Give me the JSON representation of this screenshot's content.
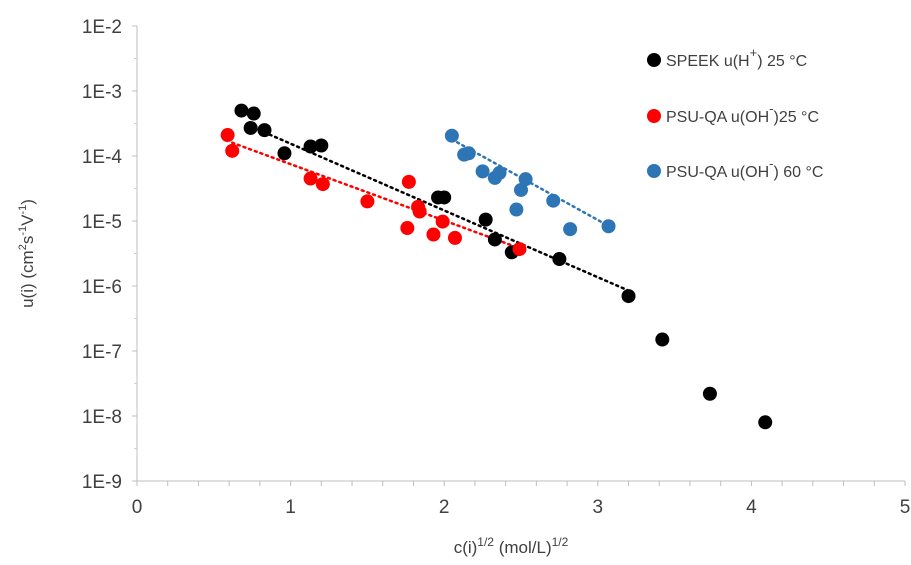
{
  "chart_data": {
    "type": "scatter",
    "xlabel_base": "c(i)",
    "xlabel_exp": "1/2",
    "xlabel_unit": " (mol/L)",
    "xlabel_unit_exp": "1/2",
    "ylabel_base": "u(i) (cm",
    "ylabel_sup1": "2",
    "ylabel_mid": "s",
    "ylabel_sup2": "-1",
    "ylabel_mid2": "V",
    "ylabel_sup3": "-1",
    "ylabel_end": ")",
    "xlim": [
      0,
      5
    ],
    "ylim_log10": [
      -9,
      -2
    ],
    "y_scale": "log",
    "grid": false,
    "legend_position": "top-right",
    "x_ticks": [
      "0",
      "1",
      "2",
      "3",
      "4",
      "5"
    ],
    "y_ticks": [
      "1E-9",
      "1E-8",
      "1E-7",
      "1E-6",
      "1E-5",
      "1E-4",
      "1E-3",
      "1E-2"
    ],
    "series": [
      {
        "legend_prefix": "SPEEK ",
        "legend_ion": "u(H",
        "legend_sign": "+",
        "legend_suffix": ") 25 °C",
        "color": "#000000",
        "x": [
          0.68,
          0.76,
          0.74,
          0.83,
          0.96,
          1.13,
          1.2,
          1.96,
          2.0,
          2.27,
          2.33,
          2.44,
          2.75,
          3.2,
          3.42,
          3.73,
          4.09
        ],
        "y": [
          0.0005,
          0.00045,
          0.00027,
          0.00025,
          0.00011,
          0.00014,
          0.000145,
          2.3e-05,
          2.3e-05,
          1.05e-05,
          5.2e-06,
          3.3e-06,
          2.6e-06,
          7e-07,
          1.5e-07,
          2.2e-08,
          8e-09
        ],
        "trend": {
          "x": [
            0.72,
            3.2
          ],
          "y": [
            0.0003,
            8.5e-07
          ]
        }
      },
      {
        "legend_prefix": "PSU-QA ",
        "legend_ion": "u(OH",
        "legend_sign": "-",
        "legend_suffix": ")25 °C",
        "color": "#ff0000",
        "x": [
          0.59,
          0.62,
          1.13,
          1.21,
          1.5,
          1.77,
          1.76,
          1.83,
          1.84,
          1.93,
          1.99,
          2.07,
          2.49
        ],
        "y": [
          0.00021,
          0.00012,
          4.5e-05,
          3.7e-05,
          2e-05,
          4e-05,
          7.8e-06,
          1.65e-05,
          1.4e-05,
          6.2e-06,
          9.8e-06,
          5.5e-06,
          3.7e-06
        ],
        "trend": {
          "x": [
            0.62,
            2.48
          ],
          "y": [
            0.00016,
            3.9e-06
          ]
        }
      },
      {
        "legend_prefix": "PSU-QA ",
        "legend_ion": "u(OH",
        "legend_sign": "-",
        "legend_suffix": ") 60 °C",
        "color": "#2e75b6",
        "x": [
          2.05,
          2.13,
          2.16,
          2.25,
          2.33,
          2.36,
          2.47,
          2.5,
          2.53,
          2.71,
          2.82,
          3.07
        ],
        "y": [
          0.000205,
          0.000105,
          0.00011,
          5.8e-05,
          4.6e-05,
          5.5e-05,
          1.5e-05,
          3e-05,
          4.4e-05,
          2.05e-05,
          7.5e-06,
          8.3e-06
        ],
        "trend": {
          "x": [
            2.05,
            3.07
          ],
          "y": [
            0.00018,
            8.4e-06
          ]
        }
      }
    ]
  }
}
